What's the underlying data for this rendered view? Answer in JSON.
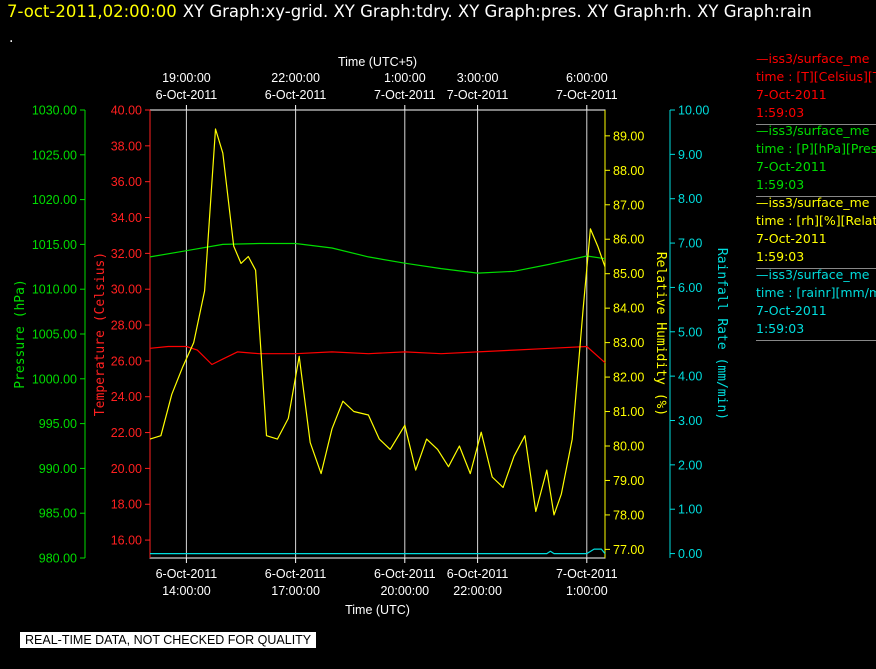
{
  "header": {
    "datetime": "7-oct-2011,02:00:00",
    "titles": "XY Graph:xy-grid.  XY Graph:tdry.  XY Graph:pres.  XY Graph:rh.  XY Graph:rain",
    "dot": "."
  },
  "legend": [
    {
      "color": "#ff0000",
      "line1": "—iss3/surface_me",
      "line2": "time : [T][Celsius][T",
      "line3": "7-Oct-2011",
      "line4": "1:59:03"
    },
    {
      "color": "#00dd00",
      "line1": "—iss3/surface_me",
      "line2": "time : [P][hPa][Pres",
      "line3": "7-Oct-2011",
      "line4": "1:59:03"
    },
    {
      "color": "#ffff00",
      "line1": "—iss3/surface_me",
      "line2": "time : [rh][%][Relati",
      "line3": "7-Oct-2011",
      "line4": "1:59:03"
    },
    {
      "color": "#00dddd",
      "line1": "—iss3/surface_me",
      "line2": "time : [rainr][mm/mi",
      "line3": "7-Oct-2011",
      "line4": "1:59:03"
    }
  ],
  "footer": {
    "qc_notice": "REAL-TIME DATA, NOT CHECKED FOR QUALITY"
  },
  "chart_data": {
    "type": "line",
    "xlim_hours_utc": [
      13.0,
      25.5
    ],
    "top_axis": {
      "label": "Time (UTC+5)",
      "ticks": [
        {
          "x": 14.0,
          "line1": "19:00:00",
          "line2": "6-Oct-2011"
        },
        {
          "x": 17.0,
          "line1": "22:00:00",
          "line2": "6-Oct-2011"
        },
        {
          "x": 20.0,
          "line1": "1:00:00",
          "line2": "7-Oct-2011"
        },
        {
          "x": 22.0,
          "line1": "3:00:00",
          "line2": "7-Oct-2011"
        },
        {
          "x": 25.0,
          "line1": "6:00:00",
          "line2": "7-Oct-2011"
        }
      ]
    },
    "bottom_axis": {
      "label": "Time (UTC)",
      "ticks": [
        {
          "x": 14.0,
          "line1": "6-Oct-2011",
          "line2": "14:00:00"
        },
        {
          "x": 17.0,
          "line1": "6-Oct-2011",
          "line2": "17:00:00"
        },
        {
          "x": 20.0,
          "line1": "6-Oct-2011",
          "line2": "20:00:00"
        },
        {
          "x": 22.0,
          "line1": "6-Oct-2011",
          "line2": "22:00:00"
        },
        {
          "x": 25.0,
          "line1": "7-Oct-2011",
          "line2": "1:00:00"
        }
      ]
    },
    "grid": true,
    "y_axes": [
      {
        "id": "pres",
        "label": "Pressure (hPa)",
        "color": "#00dd00",
        "ylim": [
          980,
          1030
        ],
        "ticks": [
          "980.00",
          "985.00",
          "990.00",
          "995.00",
          "1000.00",
          "1005.00",
          "1010.00",
          "1015.00",
          "1020.00",
          "1025.00",
          "1030.00"
        ]
      },
      {
        "id": "temp",
        "label": "Temperature (Celsius)",
        "color": "#ff2020",
        "ylim": [
          15,
          40
        ],
        "ticks": [
          "16.00",
          "18.00",
          "20.00",
          "22.00",
          "24.00",
          "26.00",
          "28.00",
          "30.00",
          "32.00",
          "34.00",
          "36.00",
          "38.00",
          "40.00"
        ]
      },
      {
        "id": "rh",
        "label": "Relative Humidity (%)",
        "color": "#ffff00",
        "ylim": [
          76.75,
          89.75
        ],
        "ticks": [
          "77.00",
          "78.00",
          "79.00",
          "80.00",
          "81.00",
          "82.00",
          "83.00",
          "84.00",
          "85.00",
          "86.00",
          "87.00",
          "88.00",
          "89.00"
        ]
      },
      {
        "id": "rain",
        "label": "Rainfall Rate (mm/min)",
        "color": "#00dddd",
        "ylim": [
          -0.1,
          10.0
        ],
        "ticks": [
          "0.00",
          "1.00",
          "2.00",
          "3.00",
          "4.00",
          "5.00",
          "6.00",
          "7.00",
          "8.00",
          "9.00",
          "10.00"
        ]
      }
    ],
    "series": [
      {
        "axis": "pres",
        "color": "#00dd00",
        "x": [
          13.0,
          14.0,
          15.0,
          16.0,
          17.0,
          18.0,
          19.0,
          20.0,
          21.0,
          22.0,
          23.0,
          24.0,
          25.0,
          25.5
        ],
        "y": [
          1013.6,
          1014.3,
          1015.0,
          1015.1,
          1015.1,
          1014.6,
          1013.6,
          1012.9,
          1012.3,
          1011.8,
          1012.0,
          1012.8,
          1013.7,
          1013.4
        ]
      },
      {
        "axis": "temp",
        "color": "#ff0000",
        "x": [
          13.0,
          13.5,
          14.0,
          14.3,
          14.7,
          15.0,
          15.4,
          16.0,
          17.0,
          18.0,
          19.0,
          20.0,
          21.0,
          22.0,
          23.0,
          24.0,
          25.0,
          25.5
        ],
        "y": [
          26.7,
          26.8,
          26.8,
          26.6,
          25.8,
          26.1,
          26.5,
          26.4,
          26.4,
          26.5,
          26.4,
          26.5,
          26.4,
          26.5,
          26.6,
          26.7,
          26.8,
          25.9
        ],
        "note": "ends with small dip near 25.2h"
      },
      {
        "axis": "rh",
        "color": "#ffff00",
        "x": [
          13.0,
          13.3,
          13.6,
          13.9,
          14.2,
          14.5,
          14.8,
          15.0,
          15.3,
          15.5,
          15.7,
          15.9,
          16.2,
          16.5,
          16.8,
          17.1,
          17.4,
          17.7,
          18.0,
          18.3,
          18.6,
          19.0,
          19.3,
          19.6,
          20.0,
          20.3,
          20.6,
          20.9,
          21.2,
          21.5,
          21.8,
          22.1,
          22.4,
          22.7,
          23.0,
          23.3,
          23.6,
          23.9,
          24.1,
          24.3,
          24.6,
          24.9,
          25.1,
          25.3,
          25.5
        ],
        "y": [
          80.2,
          80.3,
          81.5,
          82.3,
          83.0,
          84.5,
          89.2,
          88.5,
          85.8,
          85.3,
          85.5,
          85.1,
          80.3,
          80.2,
          80.8,
          82.6,
          80.1,
          79.2,
          80.5,
          81.3,
          81.0,
          80.9,
          80.2,
          79.9,
          80.6,
          79.3,
          80.2,
          79.9,
          79.4,
          80.0,
          79.2,
          80.4,
          79.1,
          78.8,
          79.7,
          80.3,
          78.1,
          79.3,
          78.0,
          78.6,
          80.2,
          84.0,
          86.3,
          85.8,
          85.2
        ]
      },
      {
        "axis": "rain",
        "color": "#00dddd",
        "x": [
          13.0,
          23.9,
          24.0,
          24.1,
          24.5,
          25.0,
          25.2,
          25.4,
          25.5
        ],
        "y": [
          0.0,
          0.0,
          0.05,
          0.0,
          0.0,
          0.0,
          0.1,
          0.1,
          0.0
        ]
      }
    ]
  }
}
